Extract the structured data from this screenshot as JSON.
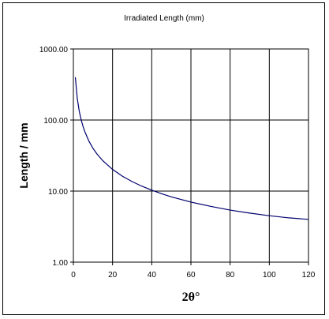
{
  "chart_data": {
    "type": "line",
    "title": "Irradiated Length (mm)",
    "xlabel": "2θ°",
    "ylabel": "Length / mm",
    "xlim": [
      0,
      120
    ],
    "ylim": [
      1,
      1000
    ],
    "yscale": "log",
    "grid": true,
    "x_ticks": [
      "0",
      "20",
      "40",
      "60",
      "80",
      "100",
      "120"
    ],
    "y_ticks": [
      "1.00",
      "10.00",
      "100.00",
      "1000.00"
    ],
    "line_color": "#00006e",
    "series": [
      {
        "x": [
          1,
          2,
          3,
          4,
          5,
          6,
          8,
          10,
          12,
          15,
          20,
          25,
          30,
          35,
          40,
          45,
          50,
          60,
          70,
          80,
          90,
          100,
          110,
          120
        ],
        "values": [
          400,
          200,
          133,
          100,
          80,
          67,
          50,
          40,
          33.4,
          26.8,
          20.2,
          16.2,
          13.6,
          11.7,
          10.3,
          9.2,
          8.3,
          7.0,
          6.1,
          5.4,
          4.9,
          4.5,
          4.2,
          4.0
        ]
      }
    ]
  }
}
